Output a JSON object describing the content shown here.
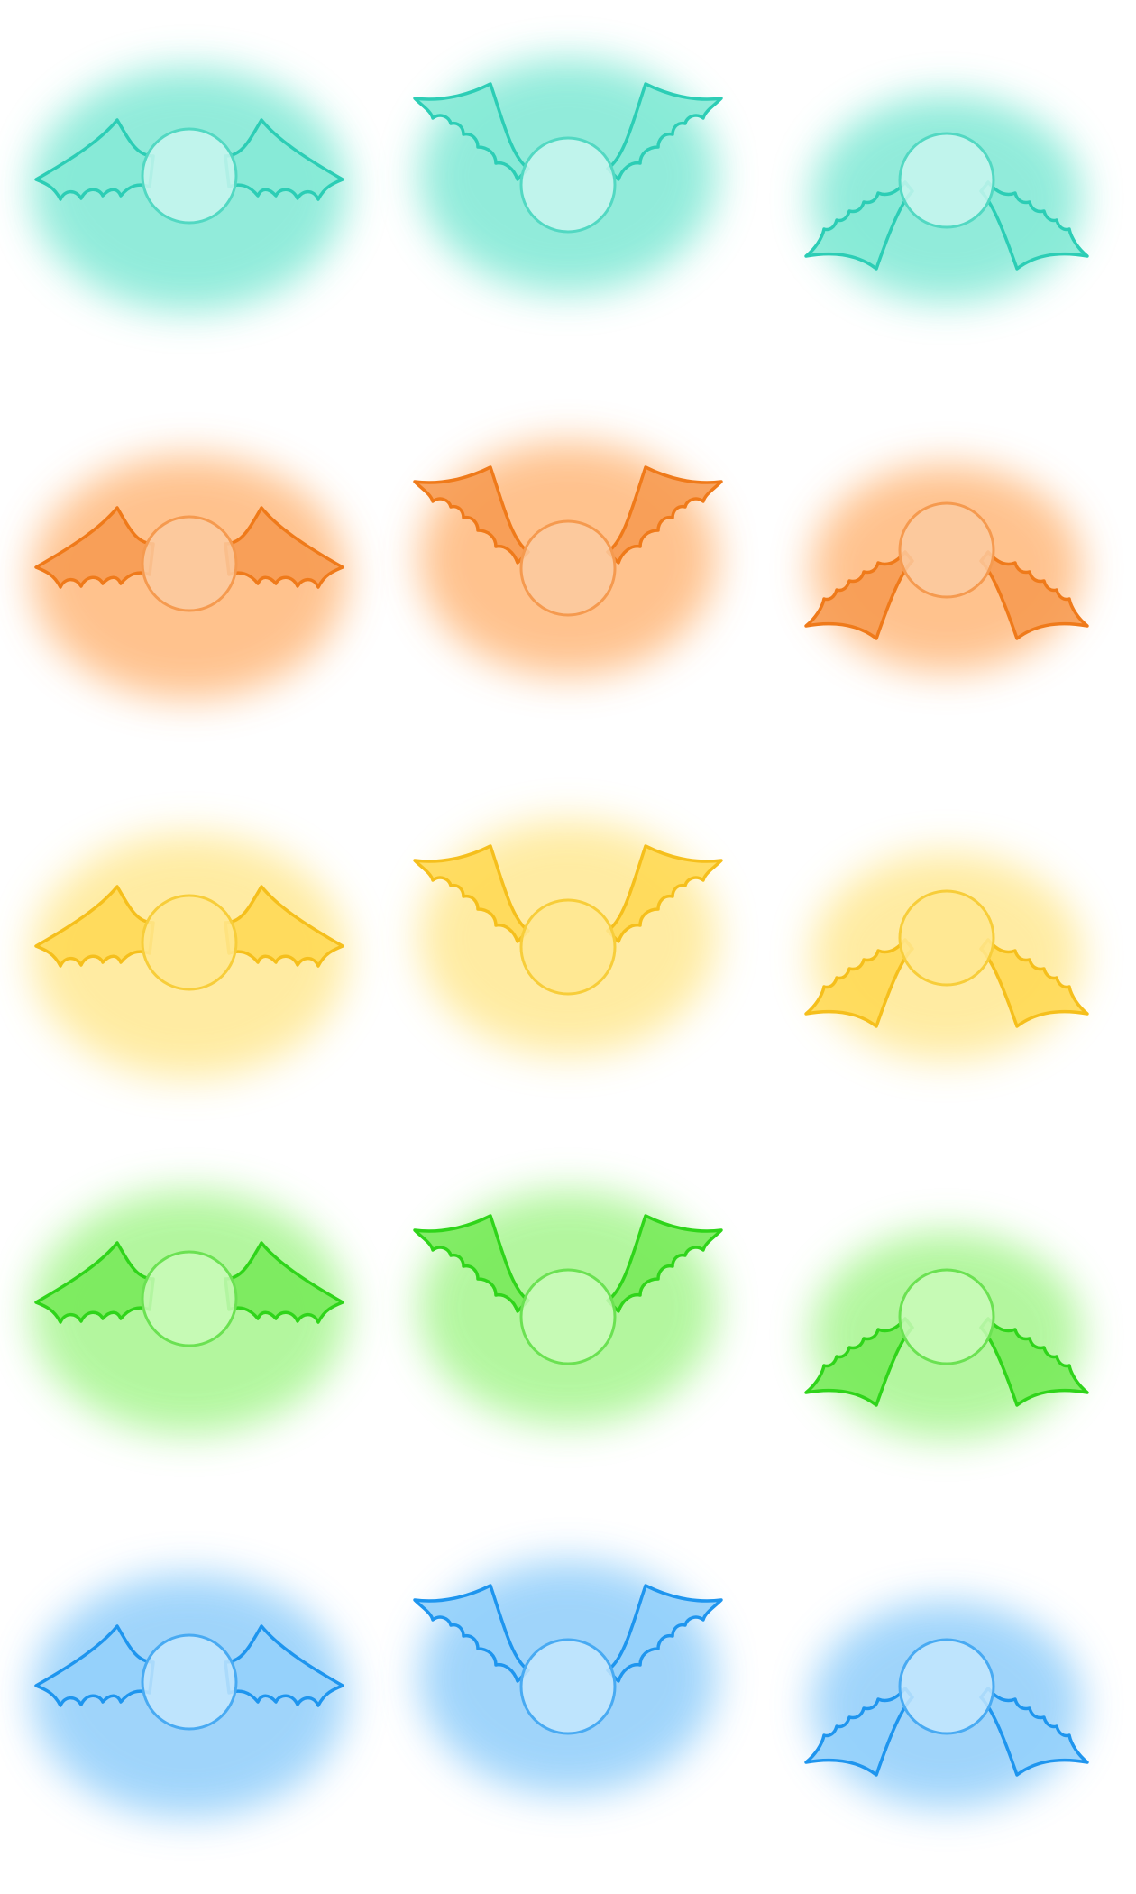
{
  "sprite_sheet": {
    "background": "#ffffff",
    "columns": [
      "wings-spread",
      "wings-raised",
      "wings-lowered"
    ],
    "rows": [
      {
        "variant": "cyan",
        "glow": "#7ee8d4",
        "wing_fill": "#86ead6",
        "wing_stroke": "#2ccdb5",
        "orb_fill": "#c8f6ee",
        "orb_stroke": "#52d8c2"
      },
      {
        "variant": "orange",
        "glow": "#ffb87a",
        "wing_fill": "#f79b52",
        "wing_stroke": "#ef7a1a",
        "orb_fill": "#fccaa0",
        "orb_stroke": "#f59a4f"
      },
      {
        "variant": "yellow",
        "glow": "#ffe892",
        "wing_fill": "#ffd955",
        "wing_stroke": "#f5bf1c",
        "orb_fill": "#ffe890",
        "orb_stroke": "#f7cd3a"
      },
      {
        "variant": "green",
        "glow": "#a6f58e",
        "wing_fill": "#78ea5a",
        "wing_stroke": "#2fd41a",
        "orb_fill": "#c9fab8",
        "orb_stroke": "#6be152"
      },
      {
        "variant": "blue",
        "glow": "#8fcdfa",
        "wing_fill": "#94d0fb",
        "wing_stroke": "#1e95ee",
        "orb_fill": "#c3e6fd",
        "orb_stroke": "#48aaf2"
      }
    ]
  }
}
